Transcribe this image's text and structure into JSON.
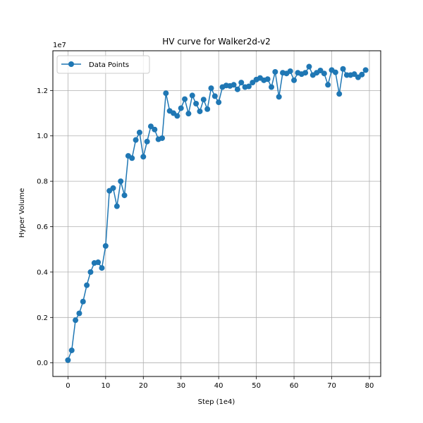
{
  "chart_data": {
    "type": "line",
    "title": "HV curve for Walker2d-v2",
    "xlabel": "Step (1e4)",
    "ylabel": "Hyper Volume",
    "y_offset_label": "1e7",
    "xlim": [
      -4,
      83
    ],
    "ylim": [
      -0.06,
      1.375
    ],
    "xticks": [
      0,
      10,
      20,
      30,
      40,
      50,
      60,
      70,
      80
    ],
    "yticks": [
      0.0,
      0.2,
      0.4,
      0.6,
      0.8,
      1.0,
      1.2
    ],
    "ytick_labels": [
      "0.0",
      "0.2",
      "0.4",
      "0.6",
      "0.8",
      "1.0",
      "1.2"
    ],
    "grid": true,
    "legend_position": "upper-left",
    "color": "#1f77b4",
    "series": [
      {
        "name": "Data Points",
        "x": [
          0,
          1,
          2,
          3,
          4,
          5,
          6,
          7,
          8,
          9,
          10,
          11,
          12,
          13,
          14,
          15,
          16,
          17,
          18,
          19,
          20,
          21,
          22,
          23,
          24,
          25,
          26,
          27,
          28,
          29,
          30,
          31,
          32,
          33,
          34,
          35,
          36,
          37,
          38,
          39,
          40,
          41,
          42,
          43,
          44,
          45,
          46,
          47,
          48,
          49,
          50,
          51,
          52,
          53,
          54,
          55,
          56,
          57,
          58,
          59,
          60,
          61,
          62,
          63,
          64,
          65,
          66,
          67,
          68,
          69,
          70,
          71,
          72,
          73,
          74,
          75,
          76,
          77,
          78,
          79
        ],
        "y": [
          0.012,
          0.055,
          0.188,
          0.218,
          0.27,
          0.342,
          0.4,
          0.44,
          0.443,
          0.418,
          0.515,
          0.758,
          0.77,
          0.69,
          0.8,
          0.738,
          0.912,
          0.902,
          0.982,
          1.015,
          0.908,
          0.975,
          1.042,
          1.028,
          0.985,
          0.99,
          1.188,
          1.11,
          1.1,
          1.088,
          1.122,
          1.162,
          1.098,
          1.178,
          1.142,
          1.108,
          1.16,
          1.118,
          1.21,
          1.175,
          1.148,
          1.215,
          1.222,
          1.22,
          1.225,
          1.205,
          1.235,
          1.215,
          1.218,
          1.235,
          1.248,
          1.255,
          1.245,
          1.25,
          1.215,
          1.282,
          1.172,
          1.278,
          1.275,
          1.285,
          1.245,
          1.278,
          1.272,
          1.278,
          1.305,
          1.268,
          1.278,
          1.288,
          1.275,
          1.225,
          1.29,
          1.28,
          1.185,
          1.295,
          1.268,
          1.268,
          1.272,
          1.258,
          1.27,
          1.29
        ]
      }
    ]
  }
}
